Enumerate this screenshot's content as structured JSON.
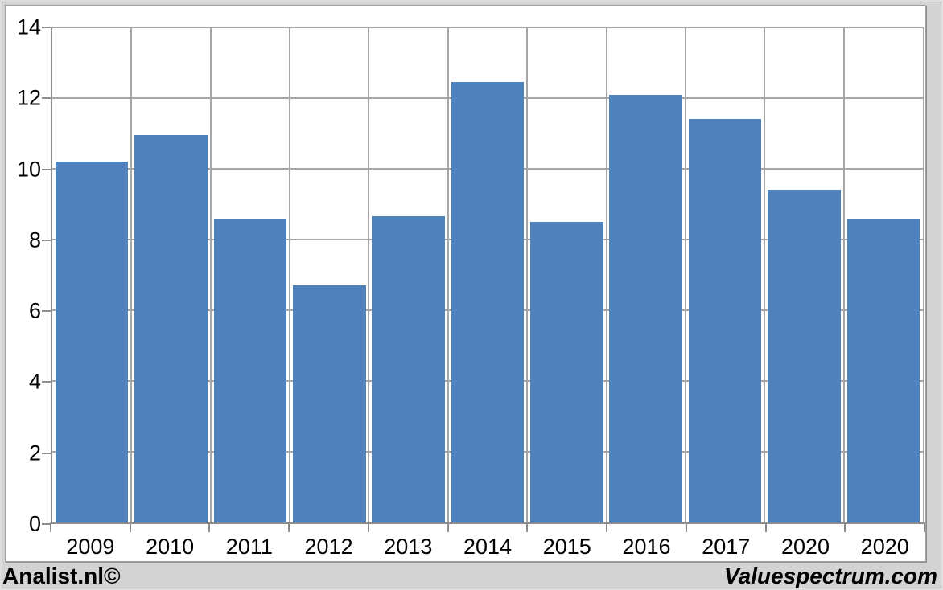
{
  "branding": {
    "left": "Analist.nl©",
    "right": "Valuespectrum.com"
  },
  "chart_data": {
    "type": "bar",
    "title": "",
    "xlabel": "",
    "ylabel": "",
    "categories": [
      "2009",
      "2010",
      "2011",
      "2012",
      "2013",
      "2014",
      "2015",
      "2016",
      "2017",
      "2020",
      "2020"
    ],
    "values": [
      10.2,
      10.95,
      8.6,
      6.7,
      8.65,
      12.45,
      8.5,
      12.1,
      11.4,
      9.4,
      8.6
    ],
    "ylim": [
      0,
      14
    ],
    "yticks": [
      0,
      2,
      4,
      6,
      8,
      10,
      12,
      14
    ],
    "grid": "both",
    "legend": "none",
    "bar_color": "#4f81bd",
    "gridline_color": "#a6a6a6",
    "axis_color": "#8c8c8c",
    "plot_bg": "#ffffff",
    "page_bg": "#d3d3d3",
    "label_color": "#000000"
  }
}
